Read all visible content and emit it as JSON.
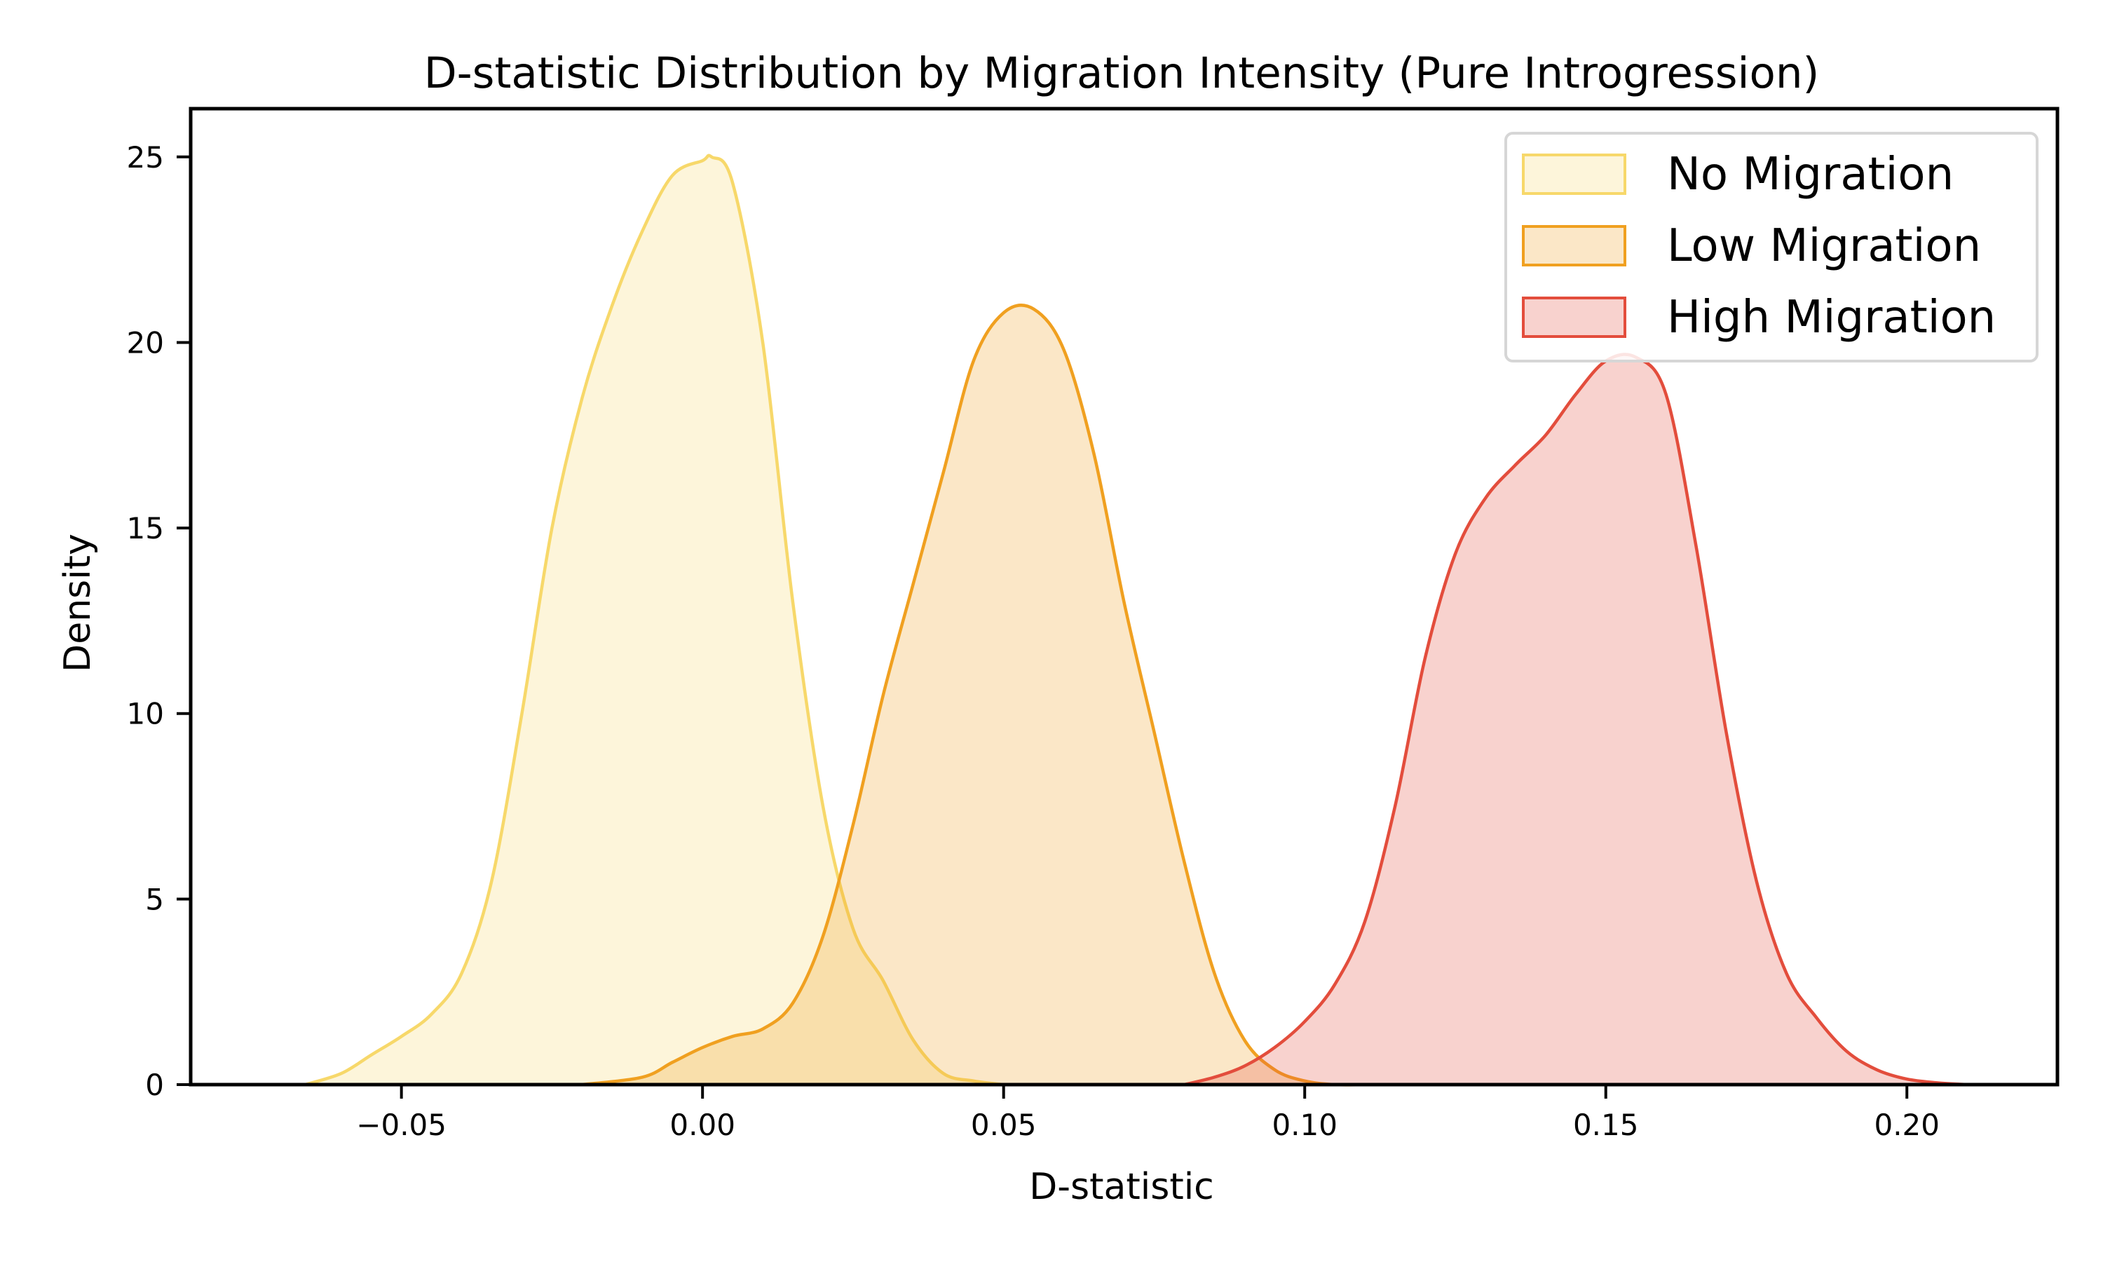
{
  "chart_data": {
    "type": "area",
    "title": "D-statistic Distribution by Migration Intensity (Pure Introgression)",
    "xlabel": "D-statistic",
    "ylabel": "Density",
    "xlim": [
      -0.085,
      0.225
    ],
    "ylim": [
      0,
      26.3
    ],
    "xticks": [
      -0.05,
      0.0,
      0.05,
      0.1,
      0.15,
      0.2
    ],
    "xtick_labels": [
      "−0.05",
      "0.00",
      "0.05",
      "0.10",
      "0.15",
      "0.20"
    ],
    "yticks": [
      0,
      5,
      10,
      15,
      20,
      25
    ],
    "ytick_labels": [
      "0",
      "5",
      "10",
      "15",
      "20",
      "25"
    ],
    "grid": false,
    "legend_position": "top-right",
    "series": [
      {
        "name": "No Migration",
        "color": "#f7d86a",
        "fill": "#fcf6da",
        "x": [
          -0.066,
          -0.06,
          -0.055,
          -0.05,
          -0.045,
          -0.04,
          -0.035,
          -0.03,
          -0.025,
          -0.02,
          -0.015,
          -0.01,
          -0.005,
          0.0,
          0.0015,
          0.005,
          0.01,
          0.015,
          0.02,
          0.025,
          0.03,
          0.035,
          0.04,
          0.045,
          0.05
        ],
        "y": [
          0.0,
          0.3,
          0.8,
          1.3,
          1.9,
          3.0,
          5.5,
          10.0,
          15.0,
          18.5,
          21.0,
          23.0,
          24.5,
          24.9,
          25.0,
          24.3,
          20.0,
          13.0,
          7.5,
          4.2,
          2.8,
          1.2,
          0.3,
          0.1,
          0.0
        ]
      },
      {
        "name": "Low Migration",
        "color": "#f0a020",
        "fill": "#fae3c0",
        "x": [
          -0.02,
          -0.01,
          -0.005,
          0.0,
          0.005,
          0.01,
          0.015,
          0.02,
          0.025,
          0.03,
          0.035,
          0.04,
          0.045,
          0.05,
          0.055,
          0.06,
          0.065,
          0.07,
          0.075,
          0.08,
          0.085,
          0.09,
          0.095,
          0.1,
          0.105,
          0.11
        ],
        "y": [
          0.0,
          0.2,
          0.6,
          1.0,
          1.3,
          1.5,
          2.2,
          4.0,
          7.0,
          10.5,
          13.5,
          16.5,
          19.5,
          20.8,
          20.9,
          19.8,
          17.0,
          13.0,
          9.5,
          6.0,
          3.0,
          1.2,
          0.4,
          0.1,
          0.0,
          0.0
        ]
      },
      {
        "name": "High Migration",
        "color": "#e34d3c",
        "fill": "#f7cfcf",
        "x": [
          0.08,
          0.085,
          0.09,
          0.095,
          0.1,
          0.105,
          0.11,
          0.115,
          0.12,
          0.125,
          0.13,
          0.135,
          0.14,
          0.145,
          0.15,
          0.155,
          0.16,
          0.165,
          0.17,
          0.175,
          0.18,
          0.185,
          0.19,
          0.195,
          0.2,
          0.205,
          0.21
        ],
        "y": [
          0.0,
          0.2,
          0.5,
          1.0,
          1.7,
          2.7,
          4.4,
          7.5,
          11.5,
          14.3,
          15.8,
          16.7,
          17.5,
          18.6,
          19.5,
          19.6,
          18.6,
          14.5,
          9.5,
          5.5,
          3.0,
          1.8,
          0.9,
          0.4,
          0.15,
          0.05,
          0.0
        ]
      }
    ]
  }
}
